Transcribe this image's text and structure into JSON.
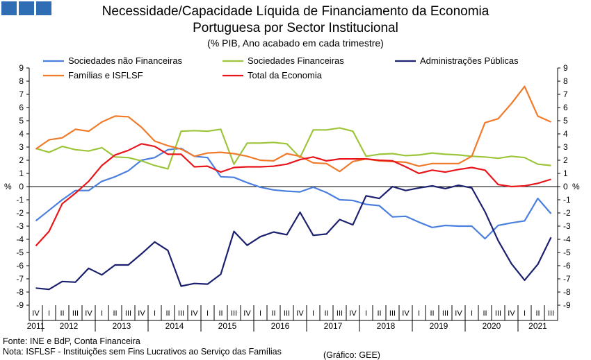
{
  "header": {
    "title_line1": "Necessidade/Capacidade Líquida de Financiamento da Economia",
    "title_line2": "Portuguesa por Sector Institucional",
    "subtitle": "(% PIB, Ano acabado em cada trimestre)"
  },
  "footer": {
    "source": "Fonte: INE e  BdP, Conta Financeira",
    "note": "Nota: ISFLSF - Instituições sem Fins Lucrativos ao Serviço das Famílias",
    "credit": "(Gráfico: GEE)"
  },
  "logo_icon": "three-blue-squares-icon",
  "chart_data": {
    "type": "line",
    "ylim": [
      -9,
      9
    ],
    "yticks": [
      9,
      8,
      7,
      6,
      5,
      4,
      3,
      2,
      1,
      0,
      -1,
      -2,
      -3,
      -4,
      -5,
      -6,
      -7,
      -8,
      -9
    ],
    "ylabel_left": "%",
    "ylabel_right": "%",
    "quarter_labels": [
      "IV",
      "I",
      "II",
      "III",
      "IV",
      "I",
      "II",
      "III",
      "IV",
      "I",
      "II",
      "III",
      "IV",
      "I",
      "II",
      "III",
      "IV",
      "I",
      "II",
      "III",
      "IV",
      "I",
      "II",
      "III",
      "IV",
      "I",
      "II",
      "III",
      "IV",
      "I",
      "II",
      "III",
      "IV",
      "I",
      "II",
      "III",
      "IV",
      "I",
      "II",
      "III"
    ],
    "year_labels": [
      {
        "label": "2011",
        "center": 0
      },
      {
        "label": "2012",
        "center": 2.5
      },
      {
        "label": "2013",
        "center": 6.5
      },
      {
        "label": "2014",
        "center": 10.5
      },
      {
        "label": "2015",
        "center": 14.5
      },
      {
        "label": "2016",
        "center": 18.5
      },
      {
        "label": "2017",
        "center": 22.5
      },
      {
        "label": "2018",
        "center": 26.5
      },
      {
        "label": "2019",
        "center": 30.5
      },
      {
        "label": "2020",
        "center": 34.5
      },
      {
        "label": "2021",
        "center": 38
      }
    ],
    "legend_placement": "top",
    "series": [
      {
        "name": "Sociedades não Financeiras",
        "color": "#4a7fe0",
        "values": [
          -2.6,
          -1.8,
          -1.0,
          -0.3,
          -0.3,
          0.4,
          0.75,
          1.2,
          2.0,
          2.2,
          2.8,
          2.9,
          2.3,
          2.2,
          0.75,
          0.7,
          0.3,
          -0.05,
          -0.25,
          -0.35,
          -0.4,
          -0.05,
          -0.45,
          -1.0,
          -1.05,
          -1.35,
          -1.45,
          -2.3,
          -2.25,
          -2.7,
          -3.1,
          -2.95,
          -3.0,
          -3.0,
          -3.95,
          -2.95,
          -2.75,
          -2.6,
          -0.9,
          -2.05
        ]
      },
      {
        "name": "Sociedades Financeiras",
        "color": "#9cc53a",
        "values": [
          2.9,
          2.6,
          3.05,
          2.8,
          2.7,
          2.95,
          2.25,
          2.2,
          1.95,
          1.6,
          1.35,
          4.2,
          4.25,
          4.2,
          4.35,
          1.7,
          3.3,
          3.3,
          3.35,
          3.25,
          2.2,
          4.3,
          4.3,
          4.45,
          4.2,
          2.3,
          2.45,
          2.5,
          2.35,
          2.4,
          2.55,
          2.45,
          2.4,
          2.3,
          2.25,
          2.15,
          2.3,
          2.2,
          1.7,
          1.6
        ]
      },
      {
        "name": "Administrações Públicas",
        "color": "#1a1f6e",
        "values": [
          -7.7,
          -7.8,
          -7.2,
          -7.25,
          -6.2,
          -6.7,
          -5.95,
          -5.95,
          -5.1,
          -4.2,
          -4.85,
          -7.55,
          -7.35,
          -7.4,
          -6.65,
          -3.4,
          -4.45,
          -3.8,
          -3.45,
          -3.65,
          -1.95,
          -3.7,
          -3.6,
          -2.5,
          -2.9,
          -0.7,
          -0.9,
          0.0,
          -0.3,
          -0.1,
          0.05,
          -0.15,
          0.1,
          -0.1,
          -1.9,
          -4.1,
          -5.85,
          -7.1,
          -5.9,
          -3.85
        ]
      },
      {
        "name": "Famílias e ISFLSF",
        "color": "#f07a2a",
        "values": [
          2.85,
          3.55,
          3.7,
          4.35,
          4.2,
          4.9,
          5.35,
          5.3,
          4.5,
          3.45,
          3.1,
          2.85,
          2.3,
          2.55,
          2.6,
          2.5,
          2.3,
          2.0,
          1.95,
          2.5,
          2.3,
          1.8,
          1.75,
          1.15,
          1.9,
          2.1,
          1.95,
          1.9,
          1.85,
          1.55,
          1.75,
          1.75,
          1.75,
          2.3,
          4.85,
          5.15,
          6.3,
          7.6,
          5.35,
          4.9
        ]
      },
      {
        "name": "Total da Economia",
        "color": "#e8151b",
        "values": [
          -4.5,
          -3.4,
          -1.3,
          -0.5,
          0.4,
          1.6,
          2.4,
          2.75,
          3.25,
          3.05,
          2.45,
          2.45,
          1.5,
          1.55,
          1.1,
          1.45,
          1.5,
          1.5,
          1.55,
          1.7,
          2.05,
          2.25,
          1.95,
          2.1,
          2.1,
          2.1,
          2.0,
          1.95,
          1.5,
          1.0,
          1.25,
          1.1,
          1.3,
          1.45,
          1.25,
          0.15,
          0.0,
          0.05,
          0.25,
          0.55
        ]
      }
    ]
  }
}
